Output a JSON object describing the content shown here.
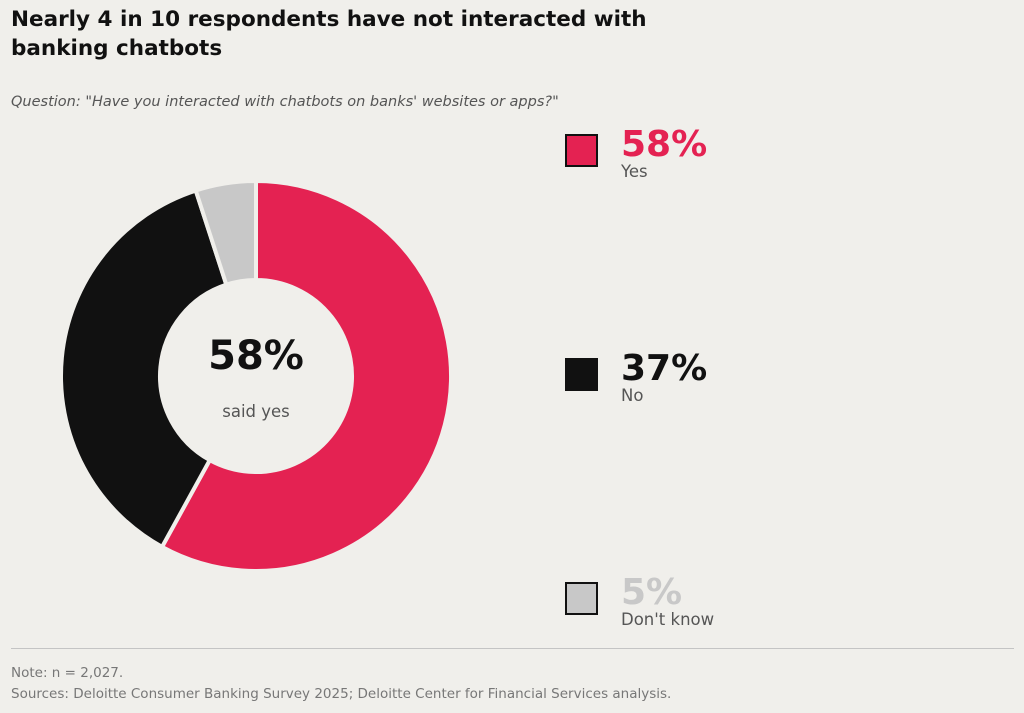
{
  "title": "Nearly 4 in 10 respondents have not interacted with banking chatbots",
  "subtitle": "Question: \"Have you interacted with chatbots on banks' websites or apps?\"",
  "chart_data": {
    "type": "pie",
    "categories": [
      "Yes",
      "No",
      "Don't know"
    ],
    "values": [
      58,
      37,
      5
    ],
    "value_labels": [
      "58%",
      "37%",
      "5%"
    ],
    "colors": [
      "#e42252",
      "#111111",
      "#c8c8c8"
    ],
    "center_value": "58%",
    "center_label": "said yes",
    "legend_placement": "right"
  },
  "footer": {
    "note": "Note: n = 2,027.",
    "sources": "Sources: Deloitte Consumer Banking Survey 2025; Deloitte Center for Financial Services analysis."
  }
}
